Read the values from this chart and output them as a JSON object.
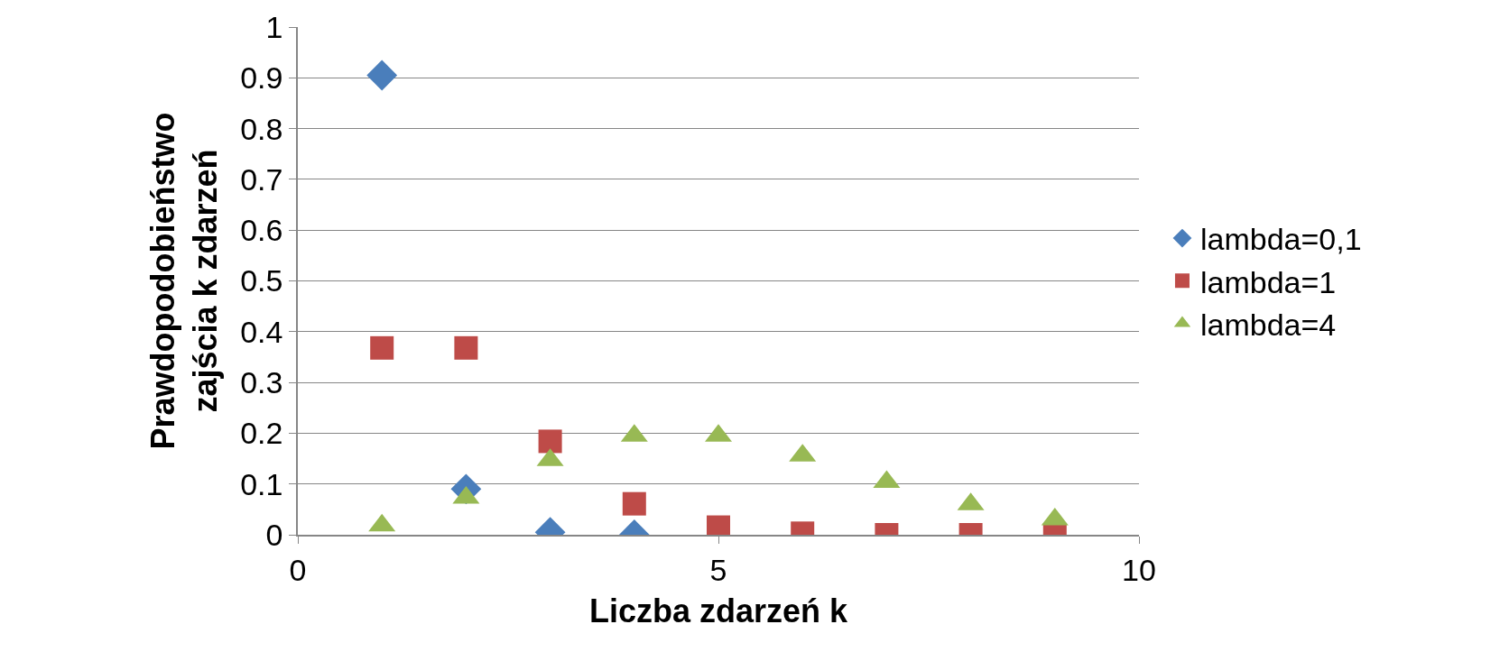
{
  "chart_data": {
    "type": "scatter",
    "xlabel": "Liczba zdarzeń k",
    "ylabel": "Prawdopodobieństwo\nzajścia k zdarzeń",
    "x": [
      1,
      2,
      3,
      4,
      5,
      6,
      7,
      8,
      9
    ],
    "series": [
      {
        "name": "lambda=0,1",
        "color": "#4a7ebb",
        "marker": "diamond",
        "values": [
          0.905,
          0.09,
          0.005,
          0,
          null,
          null,
          null,
          null,
          null
        ]
      },
      {
        "name": "lambda=1",
        "color": "#be4b48",
        "marker": "square",
        "values": [
          0.368,
          0.368,
          0.184,
          0.061,
          0.015,
          0.003,
          0,
          0,
          0
        ]
      },
      {
        "name": "lambda=4",
        "color": "#98b954",
        "marker": "triangle",
        "values": [
          0.018,
          0.073,
          0.147,
          0.195,
          0.195,
          0.156,
          0.104,
          0.06,
          0.03
        ]
      }
    ],
    "xlim": [
      0,
      10
    ],
    "xticks": [
      0,
      5,
      10
    ],
    "ylim": [
      0,
      1
    ],
    "yticks": [
      0,
      0.1,
      0.2,
      0.3,
      0.4,
      0.5,
      0.6,
      0.7,
      0.8,
      0.9,
      1
    ],
    "grid": "y",
    "legend": "right"
  }
}
